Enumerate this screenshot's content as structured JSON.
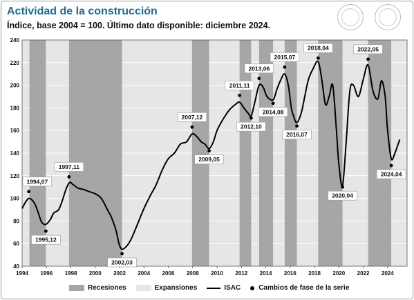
{
  "chart_data": {
    "type": "line",
    "title": "Actividad de la construcción",
    "subtitle": "Índice, base 2004 = 100. Último dato disponible: diciembre 2024.",
    "xlabel": "",
    "ylabel": "",
    "xlim": [
      1994,
      2025.6
    ],
    "ylim": [
      40,
      240
    ],
    "x_ticks": [
      1994,
      1996,
      1998,
      2000,
      2002,
      2004,
      2006,
      2008,
      2010,
      2012,
      2014,
      2016,
      2018,
      2020,
      2022,
      2024
    ],
    "y_ticks": [
      40,
      60,
      80,
      100,
      120,
      140,
      160,
      180,
      200,
      220,
      240
    ],
    "grid": "horizontal",
    "legend_position": "bottom",
    "background_color": "#e6e6e6",
    "line_color": "#000000",
    "recession_color": "#a6a6a6",
    "legend": {
      "recessions": "Recesiones",
      "expansions": "Expansiones",
      "series": "ISAC",
      "points": "Cambios de fase de la serie"
    },
    "recessions": [
      [
        1994.6,
        1995.95
      ],
      [
        1997.85,
        2002.2
      ],
      [
        2007.95,
        2009.35
      ],
      [
        2011.85,
        2012.8
      ],
      [
        2013.45,
        2014.6
      ],
      [
        2015.55,
        2016.55
      ],
      [
        2018.3,
        2020.3
      ],
      [
        2022.4,
        2024.3
      ]
    ],
    "series": [
      {
        "name": "ISAC",
        "points": [
          [
            1994.0,
            91
          ],
          [
            1994.3,
            97
          ],
          [
            1994.6,
            100
          ],
          [
            1995.0,
            96
          ],
          [
            1995.3,
            88
          ],
          [
            1995.6,
            79
          ],
          [
            1995.95,
            77
          ],
          [
            1996.3,
            81
          ],
          [
            1996.6,
            87
          ],
          [
            1997.0,
            90
          ],
          [
            1997.3,
            98
          ],
          [
            1997.6,
            108
          ],
          [
            1997.9,
            114
          ],
          [
            1998.2,
            112
          ],
          [
            1998.6,
            109
          ],
          [
            1999.0,
            108
          ],
          [
            1999.5,
            106
          ],
          [
            2000.0,
            104
          ],
          [
            2000.5,
            100
          ],
          [
            2001.0,
            90
          ],
          [
            2001.3,
            84
          ],
          [
            2001.7,
            72
          ],
          [
            2001.95,
            60
          ],
          [
            2002.2,
            55
          ],
          [
            2002.6,
            58
          ],
          [
            2003.0,
            65
          ],
          [
            2003.5,
            78
          ],
          [
            2004.0,
            91
          ],
          [
            2004.5,
            102
          ],
          [
            2005.0,
            112
          ],
          [
            2005.5,
            125
          ],
          [
            2006.0,
            135
          ],
          [
            2006.5,
            140
          ],
          [
            2007.0,
            148
          ],
          [
            2007.5,
            150
          ],
          [
            2007.95,
            157
          ],
          [
            2008.3,
            155
          ],
          [
            2008.7,
            150
          ],
          [
            2009.0,
            148
          ],
          [
            2009.35,
            144
          ],
          [
            2009.7,
            150
          ],
          [
            2010.0,
            160
          ],
          [
            2010.5,
            170
          ],
          [
            2011.0,
            178
          ],
          [
            2011.5,
            183
          ],
          [
            2011.85,
            185
          ],
          [
            2012.2,
            180
          ],
          [
            2012.5,
            176
          ],
          [
            2012.8,
            173
          ],
          [
            2013.1,
            185
          ],
          [
            2013.45,
            200
          ],
          [
            2013.8,
            198
          ],
          [
            2014.1,
            190
          ],
          [
            2014.6,
            187
          ],
          [
            2014.9,
            196
          ],
          [
            2015.2,
            204
          ],
          [
            2015.55,
            210
          ],
          [
            2015.85,
            200
          ],
          [
            2016.1,
            180
          ],
          [
            2016.3,
            172
          ],
          [
            2016.55,
            167
          ],
          [
            2016.9,
            175
          ],
          [
            2017.2,
            190
          ],
          [
            2017.5,
            205
          ],
          [
            2017.9,
            215
          ],
          [
            2018.3,
            221
          ],
          [
            2018.6,
            205
          ],
          [
            2018.9,
            183
          ],
          [
            2019.2,
            190
          ],
          [
            2019.5,
            200
          ],
          [
            2019.8,
            160
          ],
          [
            2020.0,
            130
          ],
          [
            2020.3,
            111
          ],
          [
            2020.6,
            150
          ],
          [
            2020.9,
            195
          ],
          [
            2021.2,
            200
          ],
          [
            2021.6,
            190
          ],
          [
            2022.0,
            205
          ],
          [
            2022.4,
            218
          ],
          [
            2022.8,
            195
          ],
          [
            2023.2,
            188
          ],
          [
            2023.5,
            204
          ],
          [
            2023.8,
            190
          ],
          [
            2024.0,
            160
          ],
          [
            2024.3,
            135
          ],
          [
            2024.6,
            140
          ],
          [
            2024.8,
            146
          ],
          [
            2025.0,
            152
          ]
        ]
      }
    ],
    "phase_changes": [
      {
        "label": "1994,07",
        "x": 1994.55,
        "y": 106
      },
      {
        "label": "1995,12",
        "x": 1995.95,
        "y": 71
      },
      {
        "label": "1997,11",
        "x": 1997.85,
        "y": 119
      },
      {
        "label": "2002,03",
        "x": 2002.2,
        "y": 51
      },
      {
        "label": "2007,12",
        "x": 2007.95,
        "y": 163
      },
      {
        "label": "2009,05",
        "x": 2009.35,
        "y": 142
      },
      {
        "label": "2011,11",
        "x": 2011.85,
        "y": 191
      },
      {
        "label": "2012,10",
        "x": 2012.8,
        "y": 171
      },
      {
        "label": "2013,06",
        "x": 2013.45,
        "y": 206
      },
      {
        "label": "2014,08",
        "x": 2014.6,
        "y": 184
      },
      {
        "label": "2015,07",
        "x": 2015.55,
        "y": 216
      },
      {
        "label": "2016,07",
        "x": 2016.55,
        "y": 164
      },
      {
        "label": "2018,04",
        "x": 2018.3,
        "y": 224
      },
      {
        "label": "2020,04",
        "x": 2020.3,
        "y": 110
      },
      {
        "label": "2022,05",
        "x": 2022.4,
        "y": 223
      },
      {
        "label": "2024,04",
        "x": 2024.3,
        "y": 129
      }
    ],
    "label_positions": [
      "above",
      "below",
      "above",
      "below",
      "above",
      "below",
      "above",
      "below",
      "above",
      "below",
      "above",
      "below",
      "above",
      "below",
      "above",
      "below"
    ]
  }
}
